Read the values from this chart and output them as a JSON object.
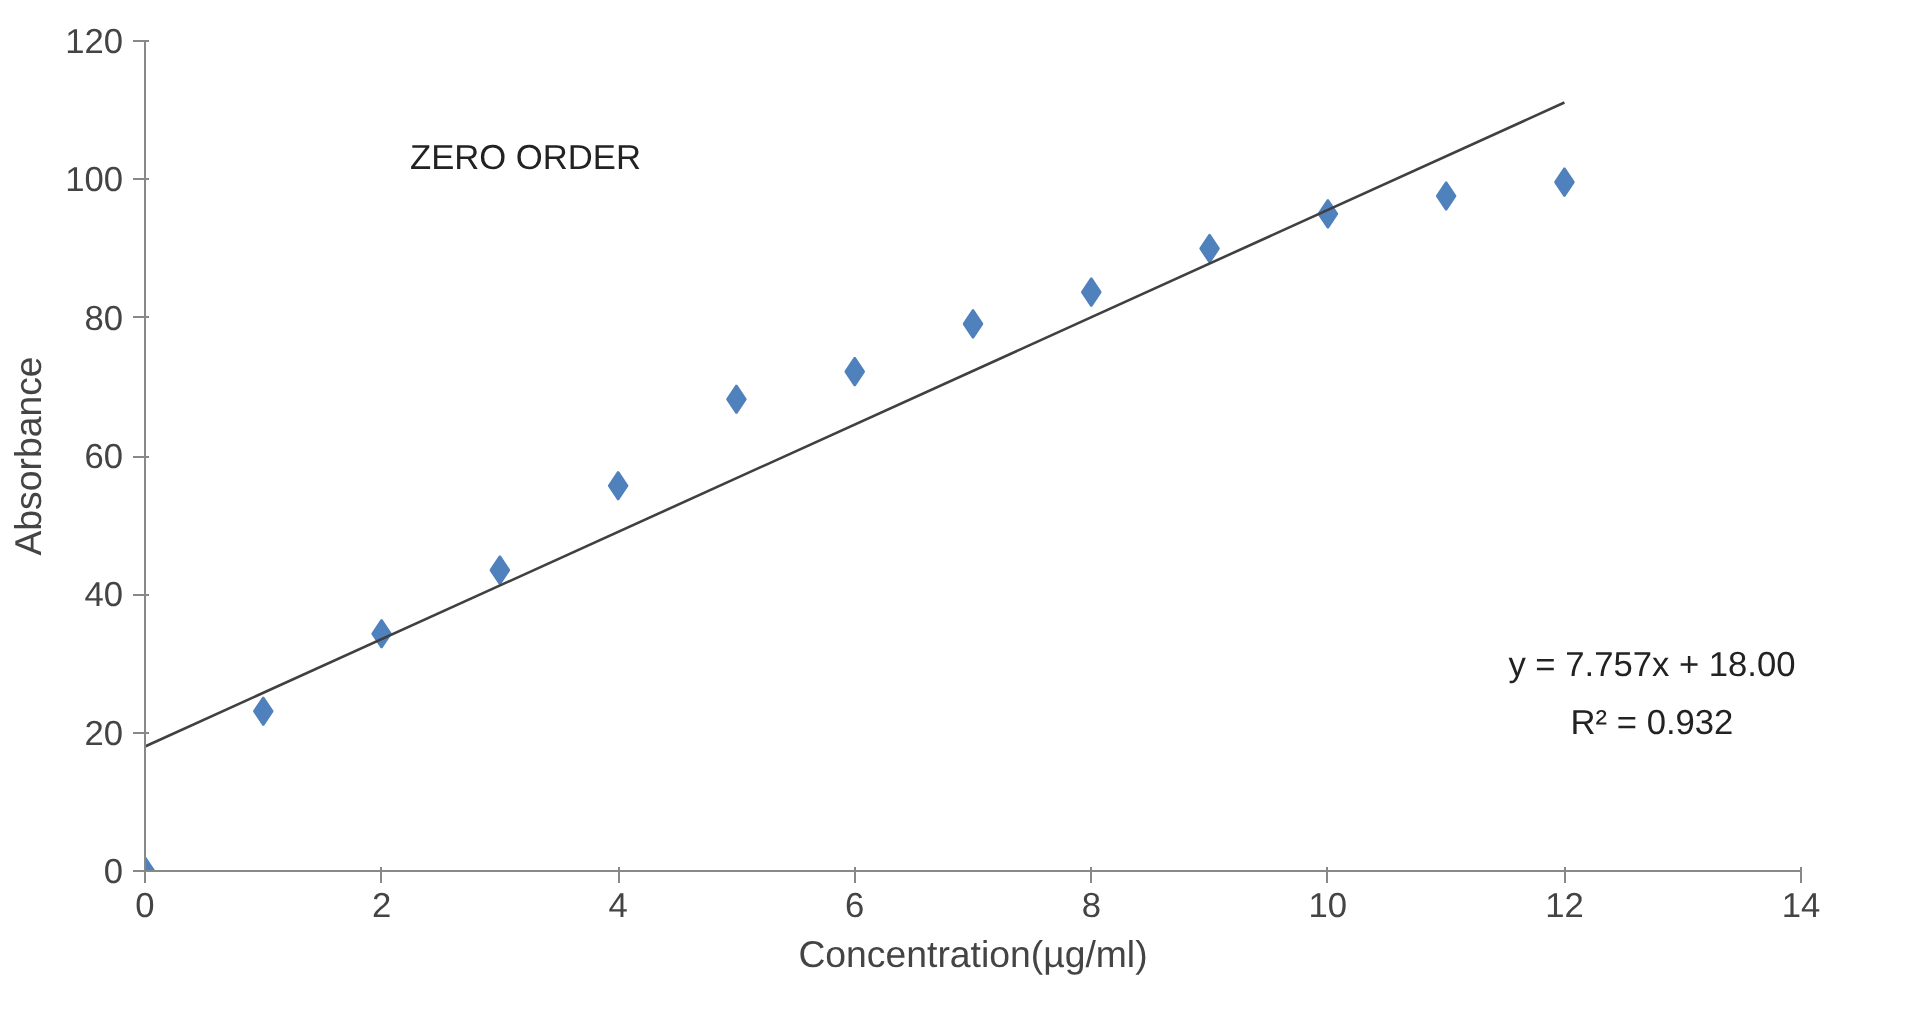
{
  "chart_data": {
    "type": "scatter",
    "xlabel": "Concentration(µg/ml)",
    "ylabel": "Absorbance",
    "xlim": [
      0,
      14
    ],
    "ylim": [
      0,
      120
    ],
    "xticks": [
      0,
      2,
      4,
      6,
      8,
      10,
      12,
      14
    ],
    "yticks": [
      0,
      20,
      40,
      60,
      80,
      100,
      120
    ],
    "grid": false,
    "x": [
      0,
      1,
      2,
      3,
      4,
      5,
      6,
      7,
      8,
      9,
      10,
      11,
      12
    ],
    "series": [
      {
        "marker": "diamond",
        "color": "#4f81bd",
        "values": [
          0,
          23.1,
          34.3,
          43.5,
          55.7,
          68.2,
          72.2,
          79.1,
          83.7,
          90,
          95,
          97.6,
          99.6
        ]
      },
      {
        "type": "line",
        "color": "#404040",
        "x": [
          0,
          12
        ],
        "values": [
          18,
          111.1
        ],
        "line_style": "solid"
      }
    ],
    "annotations": [
      "ZERO ORDER",
      "y = 7.757x + 18.00",
      "R² = 0.932"
    ]
  }
}
